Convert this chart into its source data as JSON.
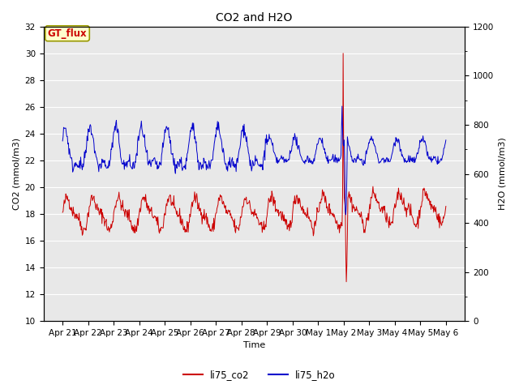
{
  "title": "CO2 and H2O",
  "xlabel": "Time",
  "ylabel_left": "CO2 (mmol/m3)",
  "ylabel_right": "H2O (mmol/m3)",
  "ylim_left": [
    10,
    32
  ],
  "ylim_right": [
    0,
    1200
  ],
  "yticks_left": [
    10,
    12,
    14,
    16,
    18,
    20,
    22,
    24,
    26,
    28,
    30,
    32
  ],
  "yticks_right": [
    0,
    200,
    400,
    600,
    800,
    1000,
    1200
  ],
  "legend_labels": [
    "li75_co2",
    "li75_h2o"
  ],
  "co2_color": "#cc0000",
  "h2o_color": "#0000cc",
  "bg_color": "#ffffff",
  "plot_bg_color": "#e8e8e8",
  "gt_flux_label": "GT_flux",
  "gt_flux_bg": "#ffffcc",
  "gt_flux_border": "#999900"
}
